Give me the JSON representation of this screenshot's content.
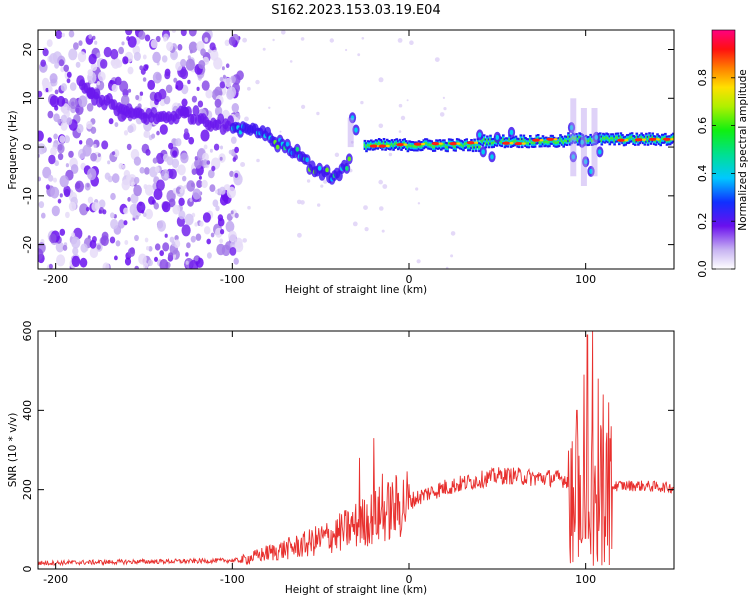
{
  "title": "S162.2023.153.03.19.E04",
  "chart_data": [
    {
      "type": "heatmap",
      "xlabel": "Height of straight line (km)",
      "ylabel": "Frequency (Hz)",
      "xlim": [
        -210,
        150
      ],
      "ylim": [
        -25,
        24
      ],
      "xticks": [
        -200,
        -100,
        0,
        100
      ],
      "yticks": [
        -20,
        -10,
        0,
        10,
        20
      ],
      "colorbar": {
        "label": "Normalized spectral amplitude",
        "range": [
          0,
          1
        ],
        "ticks": [
          "0.0",
          "0.2",
          "0.4",
          "0.6",
          "0.8"
        ]
      },
      "features": {
        "noise_region_x": [
          -210,
          -95
        ],
        "descending_ridge": [
          [
            -185,
            12
          ],
          [
            -170,
            9
          ],
          [
            -160,
            7
          ],
          [
            -140,
            6
          ],
          [
            -125,
            7
          ],
          [
            -110,
            5
          ],
          [
            -95,
            4
          ],
          [
            -85,
            3
          ],
          [
            -75,
            1
          ],
          [
            -65,
            -1
          ],
          [
            -55,
            -4
          ],
          [
            -45,
            -6
          ],
          [
            -38,
            -5
          ],
          [
            -33,
            -3
          ]
        ],
        "steady_ridge_x": [
          -25,
          150
        ],
        "steady_ridge_freq": [
          0,
          2
        ],
        "burst_x": [
          93,
          110
        ]
      }
    },
    {
      "type": "line",
      "xlabel": "Height of straight line (km)",
      "ylabel": "SNR (10 * v/v)",
      "xlim": [
        -210,
        150
      ],
      "ylim": [
        0,
        600
      ],
      "xticks": [
        -200,
        -100,
        0,
        100
      ],
      "yticks": [
        0,
        200,
        400,
        600
      ],
      "color": "#e8302e",
      "envelope": [
        [
          -210,
          15
        ],
        [
          -160,
          18
        ],
        [
          -120,
          20
        ],
        [
          -95,
          22
        ],
        [
          -80,
          40
        ],
        [
          -60,
          60
        ],
        [
          -40,
          90
        ],
        [
          -30,
          110
        ],
        [
          -20,
          130
        ],
        [
          -10,
          150
        ],
        [
          0,
          170
        ],
        [
          10,
          190
        ],
        [
          20,
          205
        ],
        [
          30,
          215
        ],
        [
          40,
          225
        ],
        [
          50,
          235
        ],
        [
          60,
          235
        ],
        [
          70,
          230
        ],
        [
          80,
          230
        ],
        [
          90,
          225
        ],
        [
          95,
          220
        ],
        [
          115,
          210
        ],
        [
          130,
          210
        ],
        [
          150,
          205
        ]
      ],
      "spikes": [
        [
          -28,
          280
        ],
        [
          -20,
          330
        ],
        [
          -15,
          240
        ],
        [
          95,
          400
        ],
        [
          99,
          490
        ],
        [
          101,
          590
        ],
        [
          104,
          600
        ],
        [
          107,
          480
        ],
        [
          110,
          440
        ],
        [
          113,
          420
        ]
      ]
    }
  ]
}
